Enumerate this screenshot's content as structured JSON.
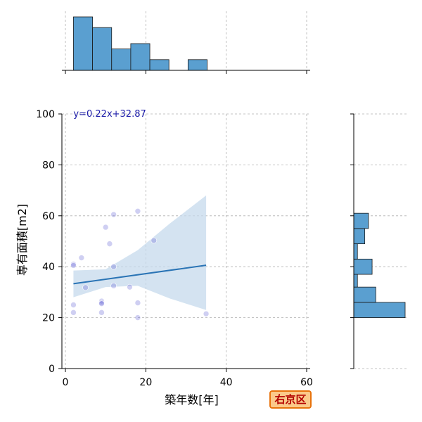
{
  "chart_data": {
    "type": "scatter",
    "xlabel": "築年数[年]",
    "ylabel": "専有面積[m2]",
    "xlim": [
      0,
      60
    ],
    "ylim": [
      0,
      100
    ],
    "x_ticks": [
      "0",
      "20",
      "40",
      "60"
    ],
    "y_ticks": [
      "0",
      "20",
      "40",
      "60",
      "80",
      "100"
    ],
    "grid": true,
    "points": [
      {
        "x": 2,
        "y": 41.0
      },
      {
        "x": 2,
        "y": 40.5
      },
      {
        "x": 2,
        "y": 25.0
      },
      {
        "x": 2,
        "y": 22.0
      },
      {
        "x": 4,
        "y": 43.5
      },
      {
        "x": 5,
        "y": 31.8
      },
      {
        "x": 9,
        "y": 26.5
      },
      {
        "x": 9,
        "y": 25.8
      },
      {
        "x": 9,
        "y": 25.5
      },
      {
        "x": 9,
        "y": 22.0
      },
      {
        "x": 10,
        "y": 55.5
      },
      {
        "x": 11,
        "y": 49.0
      },
      {
        "x": 12,
        "y": 60.5
      },
      {
        "x": 12,
        "y": 40.0
      },
      {
        "x": 12,
        "y": 32.5
      },
      {
        "x": 16,
        "y": 32.0
      },
      {
        "x": 18,
        "y": 61.8
      },
      {
        "x": 18,
        "y": 25.8
      },
      {
        "x": 18,
        "y": 20.0
      },
      {
        "x": 22,
        "y": 50.3
      },
      {
        "x": 35,
        "y": 21.5
      }
    ],
    "regression": {
      "equation": "y=0.22x+32.87",
      "slope": 0.22,
      "intercept": 32.87,
      "x_range": [
        2,
        35
      ],
      "ci_band": [
        {
          "x": 2,
          "lower": 28.0,
          "upper": 38.5
        },
        {
          "x": 10,
          "lower": 32.0,
          "upper": 39.0
        },
        {
          "x": 18,
          "lower": 32.5,
          "upper": 46.5
        },
        {
          "x": 26,
          "lower": 27.5,
          "upper": 57.0
        },
        {
          "x": 35,
          "lower": 23.0,
          "upper": 68.0
        }
      ]
    },
    "x_histogram": {
      "bins": [
        {
          "x0": 2,
          "x1": 6.75,
          "count": 5
        },
        {
          "x0": 6.75,
          "x1": 11.5,
          "count": 4
        },
        {
          "x0": 11.5,
          "x1": 16.25,
          "count": 2
        },
        {
          "x0": 16.25,
          "x1": 21,
          "count": 2.5
        },
        {
          "x0": 21,
          "x1": 25.75,
          "count": 1
        },
        {
          "x0": 25.75,
          "x1": 30.5,
          "count": 0
        },
        {
          "x0": 30.5,
          "x1": 35.25,
          "count": 1
        }
      ]
    },
    "y_histogram": {
      "bins": [
        {
          "y0": 20,
          "y1": 26,
          "count": 7
        },
        {
          "y0": 26,
          "y1": 32,
          "count": 3
        },
        {
          "y0": 32,
          "y1": 37,
          "count": 0.5
        },
        {
          "y0": 37,
          "y1": 43,
          "count": 2.5
        },
        {
          "y0": 43,
          "y1": 49,
          "count": 0.5
        },
        {
          "y0": 49,
          "y1": 55,
          "count": 1.5
        },
        {
          "y0": 55,
          "y1": 61,
          "count": 2
        }
      ]
    }
  },
  "badge": {
    "label": "右京区"
  },
  "colors": {
    "bar": "#5a9fd0",
    "line": "#2a74b5",
    "band": "#c6d9ec",
    "point": "#6a6ad8",
    "equation": "#1a1aa8",
    "grid": "#b0b0b0",
    "badge_bg": "#fbc98a",
    "badge_border": "#e8730c",
    "badge_text": "#b30000"
  }
}
